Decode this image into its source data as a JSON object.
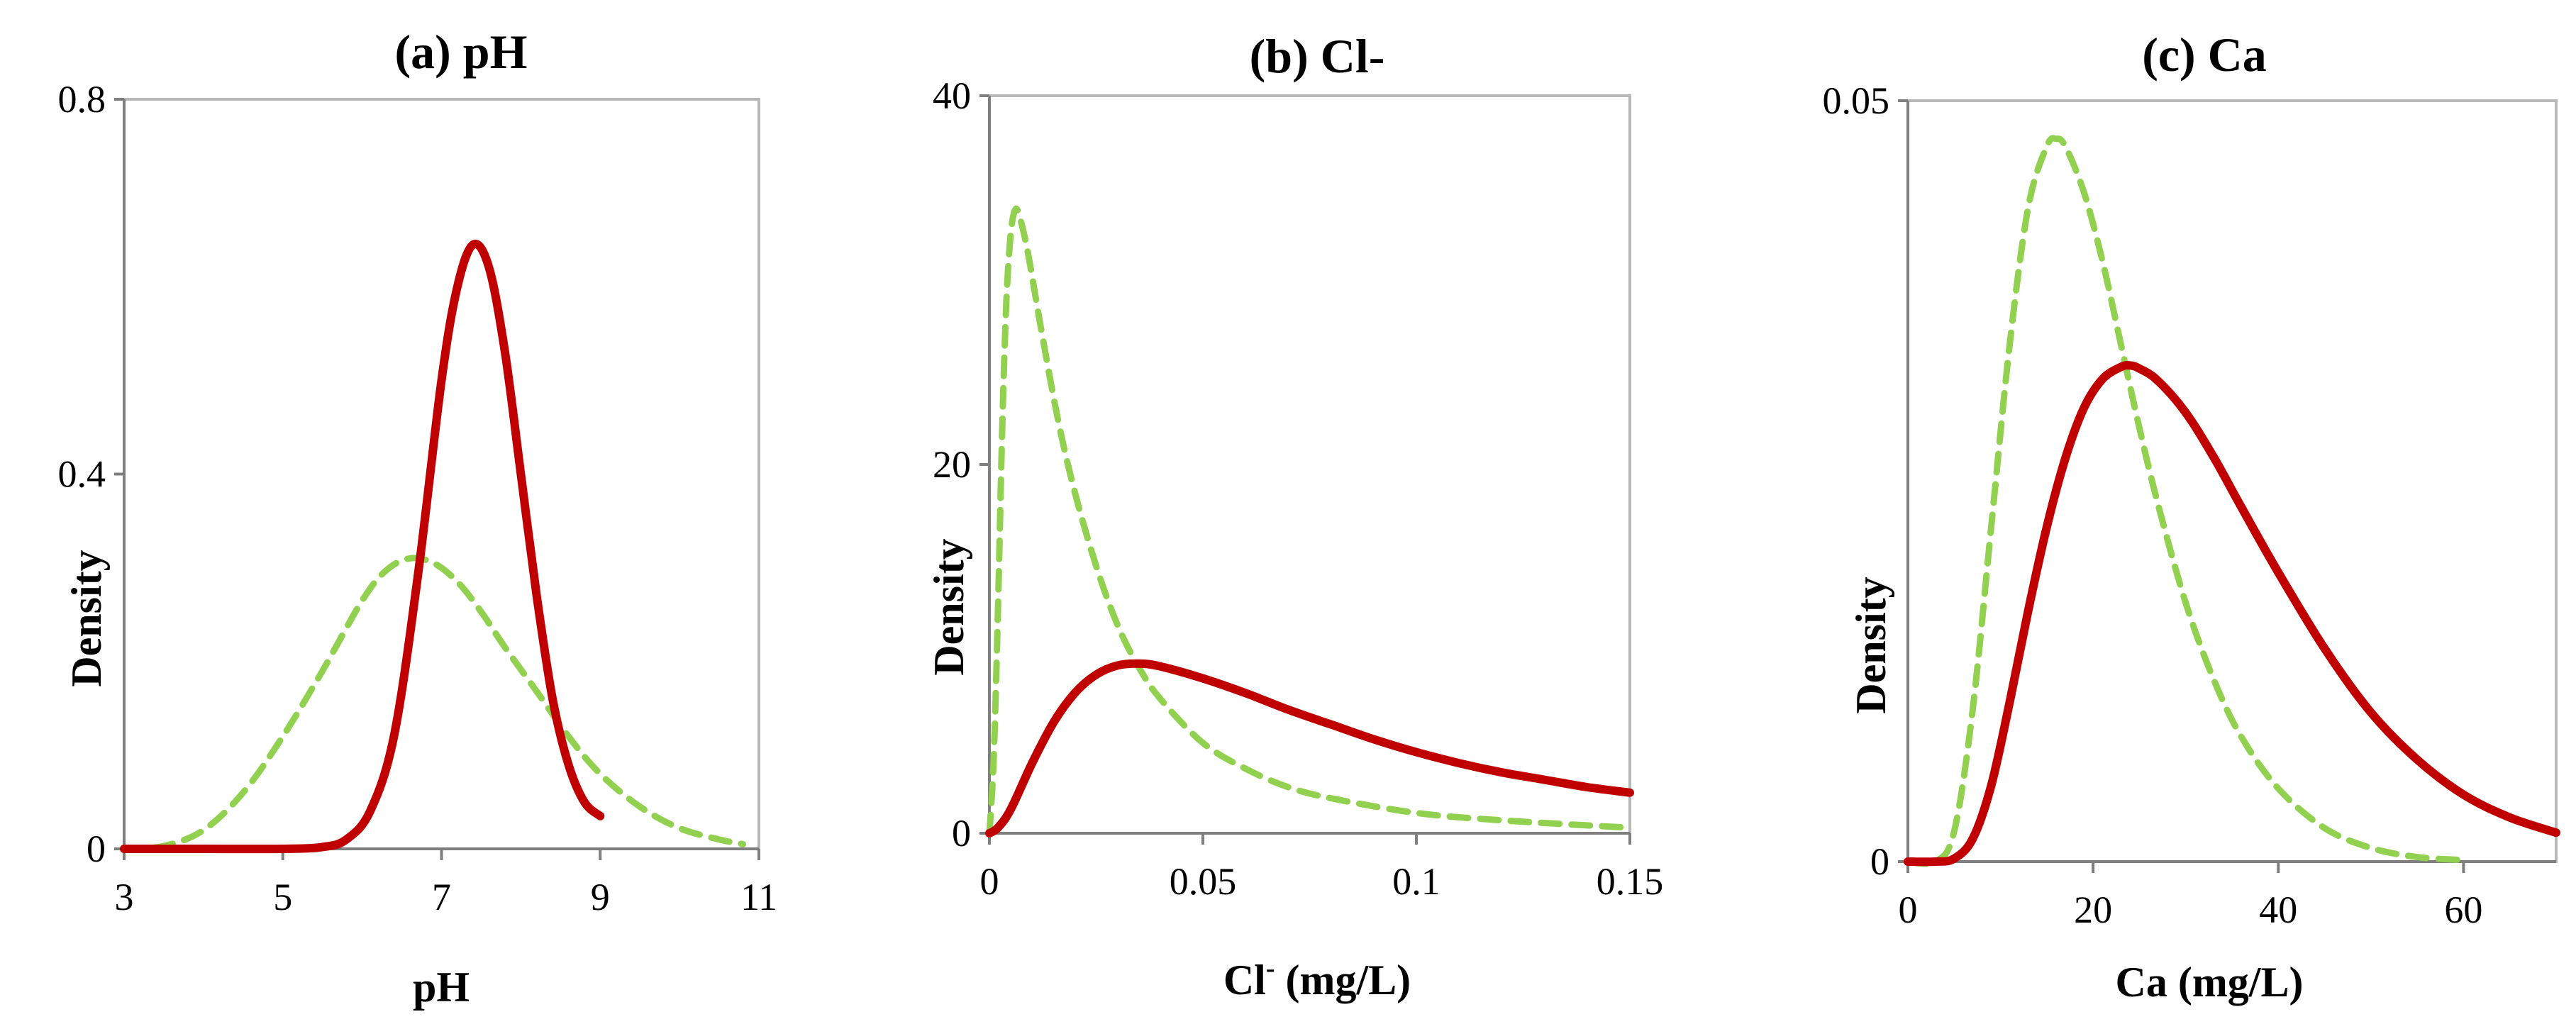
{
  "chart_data": [
    {
      "id": "a",
      "type": "line",
      "title": "(a) pH",
      "xlabel": "pH",
      "xlabel_sup": "",
      "xlabel_rest": "",
      "ylabel": "Density",
      "xlim": [
        3,
        11
      ],
      "ylim": [
        0,
        0.8
      ],
      "xticks": [
        3,
        5,
        7,
        9,
        11
      ],
      "xtick_labels": [
        "3",
        "5",
        "7",
        "9",
        "11"
      ],
      "yticks": [
        0,
        0.4,
        0.8
      ],
      "ytick_labels": [
        "0",
        "0.4",
        "0.8"
      ],
      "series": [
        {
          "name": "dashed",
          "style": "dashed",
          "color": "#92d050",
          "x": [
            3.0,
            3.5,
            4.0,
            4.5,
            5.0,
            5.5,
            6.0,
            6.3,
            6.6,
            6.9,
            7.2,
            7.5,
            7.8,
            8.2,
            8.6,
            9.0,
            9.5,
            10.0,
            10.5,
            10.8
          ],
          "y": [
            0.0,
            0.003,
            0.02,
            0.06,
            0.12,
            0.19,
            0.265,
            0.297,
            0.31,
            0.305,
            0.285,
            0.253,
            0.215,
            0.168,
            0.12,
            0.08,
            0.045,
            0.022,
            0.01,
            0.005
          ]
        },
        {
          "name": "solid",
          "style": "solid",
          "color": "#c00000",
          "x": [
            3.0,
            4.0,
            5.0,
            5.5,
            5.8,
            6.1,
            6.4,
            6.7,
            7.0,
            7.2,
            7.4,
            7.6,
            7.8,
            8.0,
            8.2,
            8.4,
            8.6,
            8.8,
            9.0
          ],
          "y": [
            0.0,
            0.0,
            0.0,
            0.002,
            0.01,
            0.04,
            0.12,
            0.29,
            0.5,
            0.6,
            0.645,
            0.62,
            0.53,
            0.4,
            0.27,
            0.16,
            0.09,
            0.05,
            0.035
          ]
        }
      ]
    },
    {
      "id": "b",
      "type": "line",
      "title": "(b) Cl-",
      "xlabel": "Cl",
      "xlabel_sup": "-",
      "xlabel_rest": " (mg/L)",
      "ylabel": "Density",
      "xlim": [
        0,
        0.15
      ],
      "ylim": [
        0,
        40
      ],
      "xticks": [
        0,
        0.05,
        0.1,
        0.15
      ],
      "xtick_labels": [
        "0",
        "0.05",
        "0.1",
        "0.15"
      ],
      "yticks": [
        0,
        20,
        40
      ],
      "ytick_labels": [
        "0",
        "20",
        "40"
      ],
      "series": [
        {
          "name": "dashed",
          "style": "dashed",
          "color": "#92d050",
          "x": [
            0.0,
            0.001,
            0.002,
            0.003,
            0.004,
            0.005,
            0.006,
            0.007,
            0.009,
            0.012,
            0.016,
            0.02,
            0.025,
            0.03,
            0.035,
            0.04,
            0.05,
            0.06,
            0.07,
            0.08,
            0.1,
            0.12,
            0.15
          ],
          "y": [
            0.0,
            4.0,
            12.0,
            22.0,
            29.0,
            32.5,
            33.8,
            33.5,
            31.5,
            27.5,
            22.5,
            18.5,
            14.5,
            11.3,
            9.0,
            7.3,
            4.9,
            3.5,
            2.5,
            1.9,
            1.1,
            0.7,
            0.3
          ]
        },
        {
          "name": "solid",
          "style": "solid",
          "color": "#c00000",
          "x": [
            0.0,
            0.002,
            0.005,
            0.01,
            0.015,
            0.02,
            0.025,
            0.03,
            0.035,
            0.04,
            0.05,
            0.06,
            0.07,
            0.08,
            0.09,
            0.1,
            0.11,
            0.12,
            0.13,
            0.14,
            0.15
          ],
          "y": [
            0.0,
            0.3,
            1.3,
            3.8,
            6.0,
            7.6,
            8.6,
            9.1,
            9.2,
            9.05,
            8.4,
            7.6,
            6.7,
            5.9,
            5.1,
            4.4,
            3.8,
            3.3,
            2.9,
            2.5,
            2.2
          ]
        }
      ]
    },
    {
      "id": "c",
      "type": "line",
      "title": "(c) Ca",
      "xlabel": "Ca (mg/L)",
      "xlabel_sup": "",
      "xlabel_rest": "",
      "ylabel": "Density",
      "xlim": [
        0,
        70
      ],
      "ylim": [
        0,
        0.05
      ],
      "xticks": [
        0,
        20,
        40,
        60
      ],
      "xtick_labels": [
        "0",
        "20",
        "40",
        "60"
      ],
      "yticks": [
        0,
        0.05
      ],
      "ytick_labels": [
        "0",
        "0.05"
      ],
      "series": [
        {
          "name": "dashed",
          "style": "dashed",
          "color": "#92d050",
          "x": [
            0,
            3,
            5,
            7,
            9,
            11,
            13,
            15,
            16,
            17,
            19,
            21,
            23,
            25,
            27,
            30,
            33,
            36,
            40,
            45,
            50,
            55,
            60
          ],
          "y": [
            0.0,
            0.0,
            0.002,
            0.01,
            0.022,
            0.034,
            0.043,
            0.047,
            0.0475,
            0.047,
            0.044,
            0.0395,
            0.034,
            0.0285,
            0.0235,
            0.017,
            0.012,
            0.0082,
            0.0048,
            0.0022,
            0.0009,
            0.0003,
            0.0001
          ]
        },
        {
          "name": "solid",
          "style": "solid",
          "color": "#c00000",
          "x": [
            0,
            3,
            5,
            7,
            9,
            11,
            13,
            15,
            17,
            19,
            21,
            23,
            24,
            25,
            27,
            30,
            33,
            36,
            40,
            45,
            50,
            55,
            60,
            65,
            70
          ],
          "y": [
            0.0,
            0.0,
            0.0002,
            0.0015,
            0.005,
            0.0105,
            0.0165,
            0.022,
            0.0265,
            0.0298,
            0.0317,
            0.0325,
            0.0326,
            0.0324,
            0.0316,
            0.0295,
            0.0266,
            0.0233,
            0.019,
            0.014,
            0.0098,
            0.0067,
            0.0044,
            0.0029,
            0.0019
          ]
        }
      ]
    }
  ]
}
